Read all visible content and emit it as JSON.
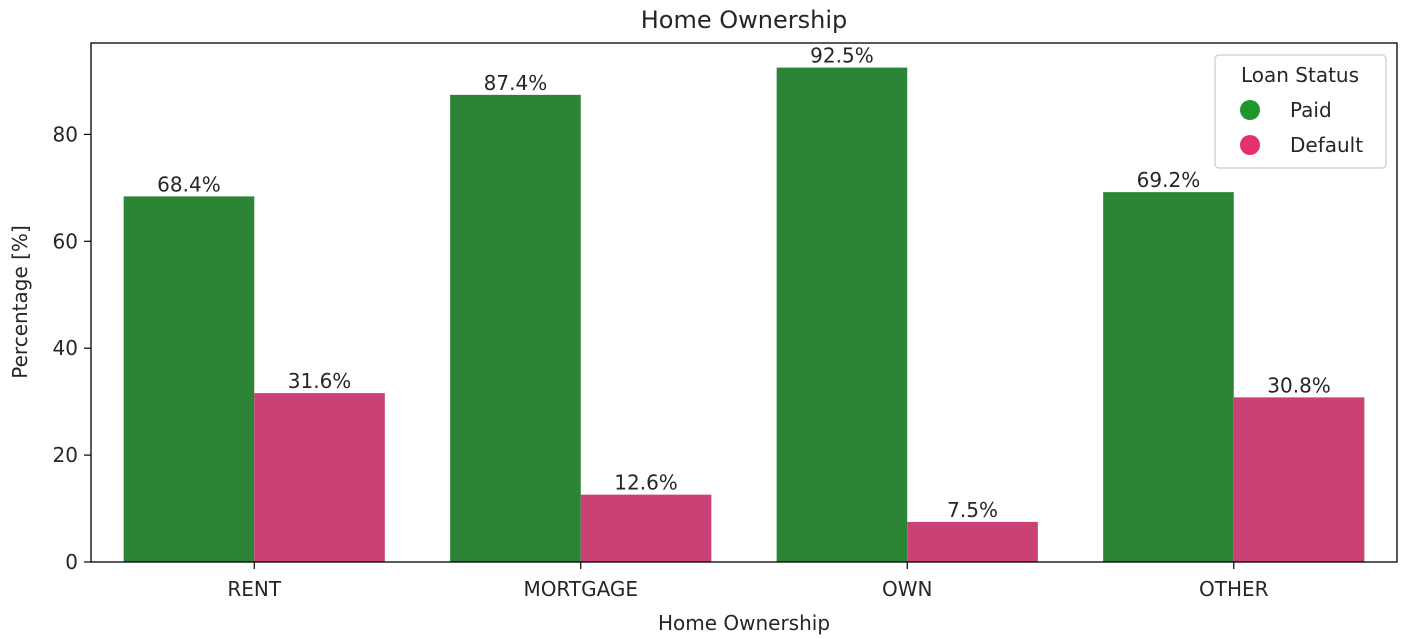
{
  "chart_data": {
    "type": "bar",
    "title": "Home Ownership",
    "xlabel": "Home Ownership",
    "ylabel": "Percentage [%]",
    "categories": [
      "RENT",
      "MORTGAGE",
      "OWN",
      "OTHER"
    ],
    "series": [
      {
        "name": "Paid",
        "color": "#2c8436",
        "legend_color": "#1f962d",
        "values": [
          68.4,
          87.4,
          92.5,
          69.2
        ],
        "labels": [
          "68.4%",
          "87.4%",
          "92.5%",
          "69.2%"
        ]
      },
      {
        "name": "Default",
        "color": "#c94175",
        "legend_color": "#e3306e",
        "values": [
          31.6,
          12.6,
          7.5,
          30.8
        ],
        "labels": [
          "31.6%",
          "12.6%",
          "7.5%",
          "30.8%"
        ]
      }
    ],
    "ylim": [
      0,
      97.1
    ],
    "yticks": [
      0,
      20,
      40,
      60,
      80
    ],
    "grid": false,
    "legend": {
      "title": "Loan Status",
      "placement": "top-right"
    }
  }
}
